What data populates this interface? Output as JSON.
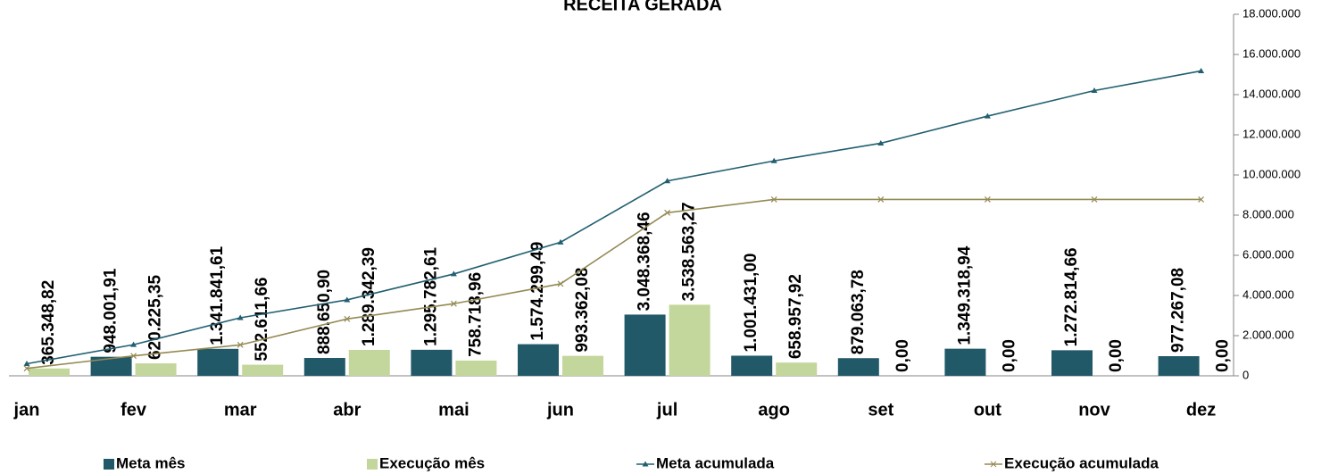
{
  "chart_data": {
    "type": "bar",
    "title": "RECEITA GERADA",
    "categories": [
      "jan",
      "fev",
      "mar",
      "abr",
      "mai",
      "jun",
      "jul",
      "ago",
      "set",
      "out",
      "nov",
      "dez"
    ],
    "series": [
      {
        "name": "Meta mês",
        "type": "bar",
        "color": "#215968",
        "values": [
          null,
          948001.91,
          1341841.61,
          888650.9,
          1295782.61,
          1574299.49,
          3048368.46,
          1001431.0,
          879063.78,
          1349318.94,
          1272814.66,
          977267.08
        ],
        "value_labels": [
          null,
          "948.001,91",
          "1.341.841,61",
          "888.650,90",
          "1.295.782,61",
          "1.574.299,49",
          "3.048.368,46",
          "1.001.431,00",
          "879.063,78",
          "1.349.318,94",
          "1.272.814,66",
          "977.267,08"
        ]
      },
      {
        "name": "Execução mês",
        "type": "bar",
        "color": "#c3d69b",
        "values": [
          365348.82,
          620225.35,
          552611.66,
          1289342.39,
          758718.96,
          993362.08,
          3538563.27,
          658957.92,
          0,
          0,
          0,
          0
        ],
        "value_labels": [
          "365.348,82",
          "620.225,35",
          "552.611,66",
          "1.289.342,39",
          "758.718,96",
          "993.362,08",
          "3.538.563,27",
          "658.957,92",
          "0,00",
          "0,00",
          "0,00",
          "0,00"
        ]
      },
      {
        "name": "Meta acumulada",
        "type": "line",
        "marker": "triangle",
        "color": "#215f70",
        "values": [
          600000,
          1550000,
          2890000,
          3780000,
          5070000,
          6650000,
          9700000,
          10700000,
          11580000,
          12930000,
          14200000,
          15180000
        ]
      },
      {
        "name": "Execução acumulada",
        "type": "line",
        "marker": "x",
        "color": "#948a54",
        "values": [
          370000,
          990000,
          1540000,
          2830000,
          3590000,
          4580000,
          8120000,
          8780000,
          8780000,
          8780000,
          8780000,
          8780000
        ]
      }
    ],
    "ylim": [
      0,
      18000000
    ],
    "yticks": [
      0,
      {
        "value": 2000000,
        "label": "2.000.000"
      },
      {
        "value": 4000000,
        "label": "4.000.000"
      },
      {
        "value": 6000000,
        "label": "6.000.000"
      },
      {
        "value": 8000000,
        "label": "8.000.000"
      },
      {
        "value": 10000000,
        "label": "10.000.000"
      },
      {
        "value": 12000000,
        "label": "12.000.000"
      },
      {
        "value": 14000000,
        "label": "14.000.000"
      },
      {
        "value": 16000000,
        "label": "16.000.000"
      },
      {
        "value": 18000000,
        "label": "18.000.000"
      }
    ],
    "y_axis_side": "right",
    "legend": "bottom"
  }
}
